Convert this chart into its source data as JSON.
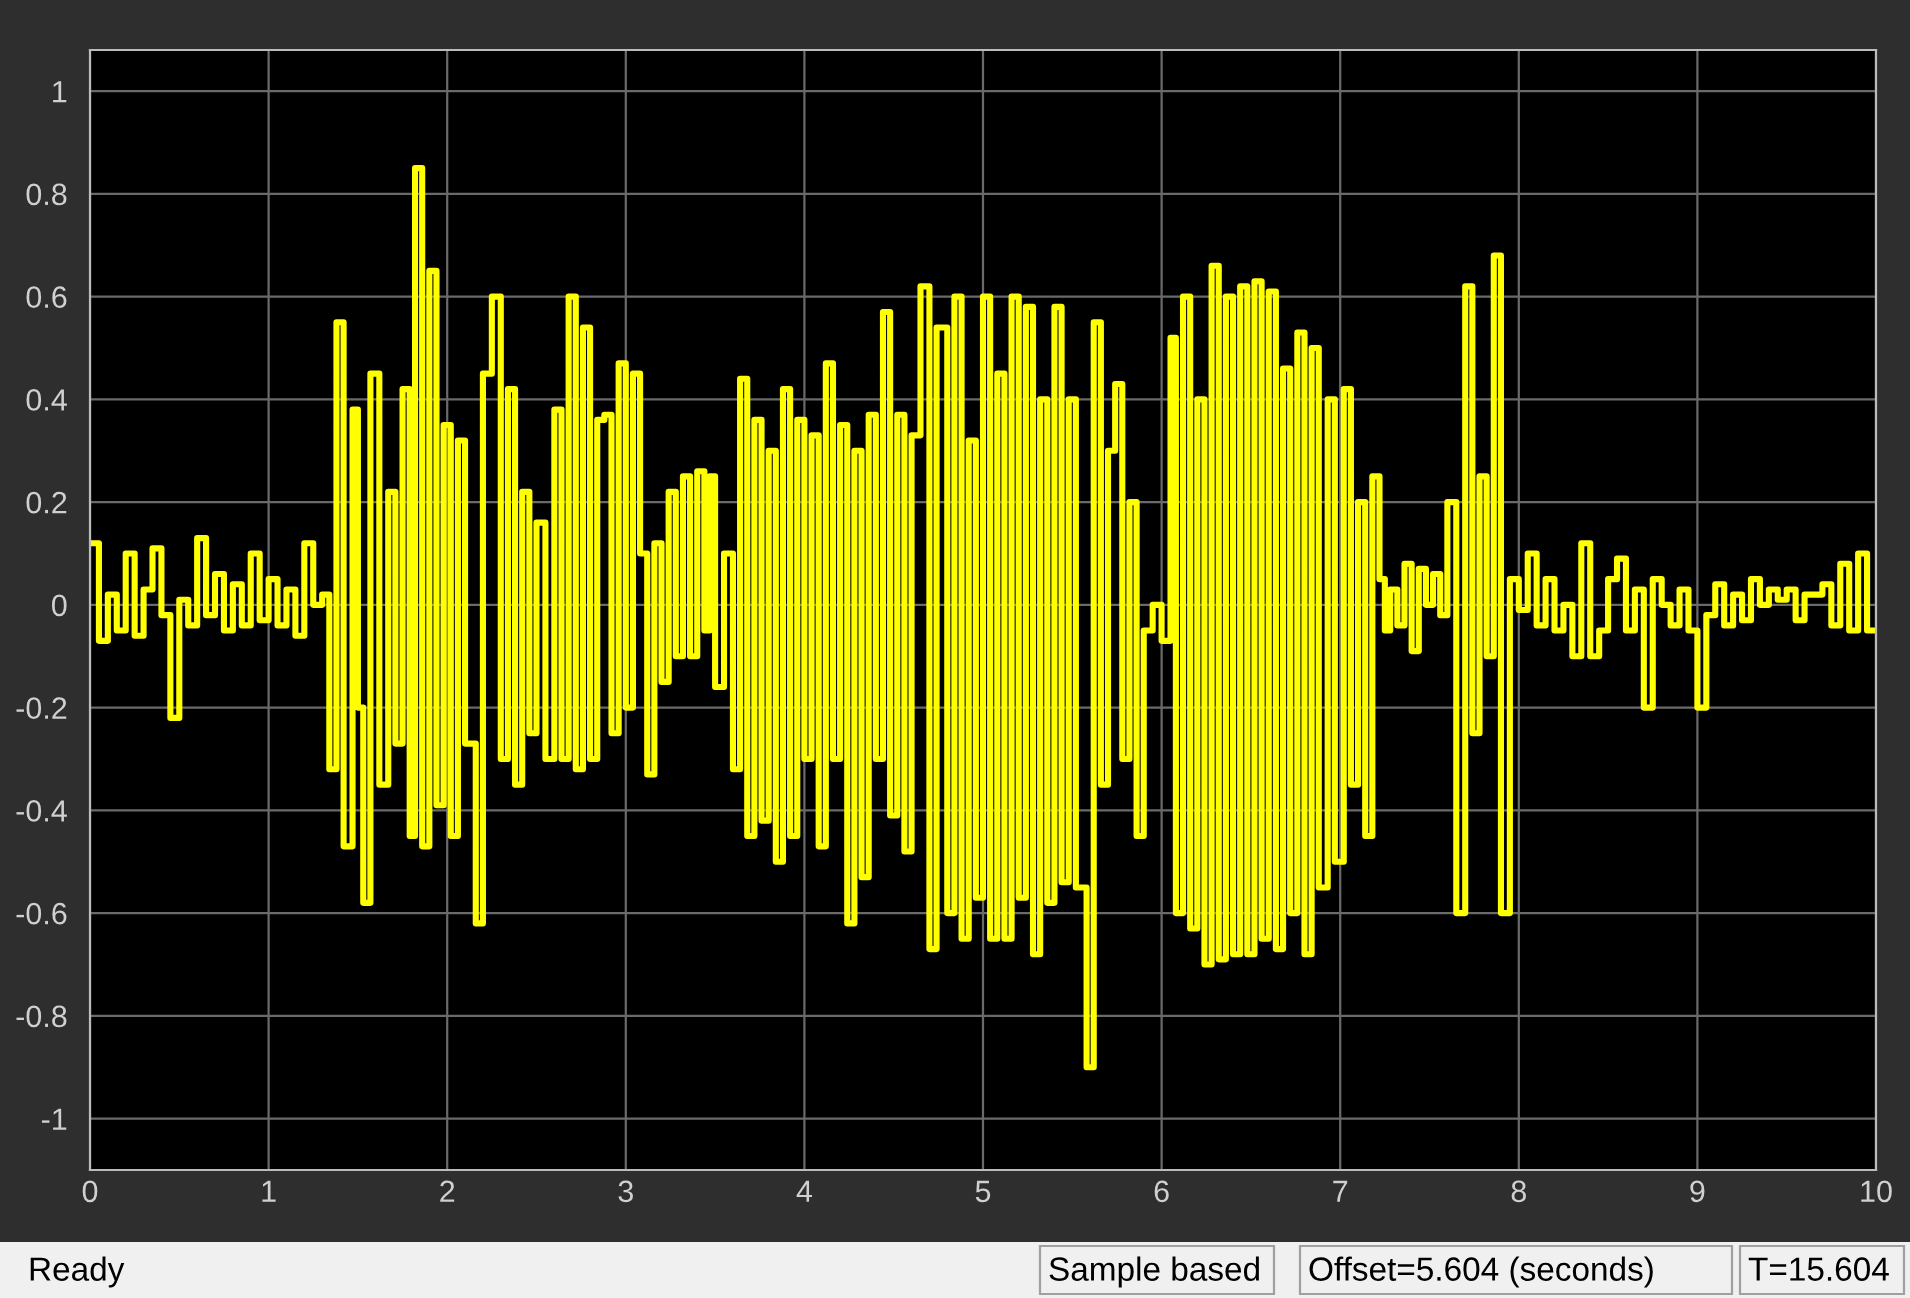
{
  "chart_data": {
    "type": "step",
    "grid": true,
    "marker": "none",
    "line_style": "solid",
    "xlim": [
      0,
      10
    ],
    "ylim": [
      -1.1,
      1.08
    ],
    "xticks": [
      0,
      1,
      2,
      3,
      4,
      5,
      6,
      7,
      8,
      9,
      10
    ],
    "yticks": [
      -1,
      -0.8,
      -0.6,
      -0.4,
      -0.2,
      0,
      0.2,
      0.4,
      0.6,
      0.8,
      1
    ],
    "annotations": [
      "Ready",
      "Sample based",
      "Offset=5.604 (seconds)",
      "T=15.604"
    ],
    "series": [
      {
        "color": "#ffff00",
        "x": [
          0.0,
          0.05,
          0.1,
          0.15,
          0.2,
          0.25,
          0.3,
          0.35,
          0.4,
          0.45,
          0.5,
          0.55,
          0.6,
          0.65,
          0.7,
          0.75,
          0.8,
          0.85,
          0.9,
          0.95,
          1.0,
          1.05,
          1.1,
          1.15,
          1.2,
          1.25,
          1.3,
          1.34,
          1.38,
          1.42,
          1.47,
          1.5,
          1.53,
          1.57,
          1.62,
          1.67,
          1.71,
          1.75,
          1.79,
          1.82,
          1.86,
          1.9,
          1.94,
          1.98,
          2.02,
          2.06,
          2.1,
          2.16,
          2.2,
          2.25,
          2.3,
          2.34,
          2.38,
          2.42,
          2.46,
          2.5,
          2.55,
          2.6,
          2.64,
          2.68,
          2.72,
          2.76,
          2.8,
          2.84,
          2.88,
          2.92,
          2.96,
          3.0,
          3.04,
          3.08,
          3.12,
          3.16,
          3.2,
          3.24,
          3.28,
          3.32,
          3.36,
          3.4,
          3.44,
          3.47,
          3.5,
          3.55,
          3.6,
          3.64,
          3.68,
          3.72,
          3.76,
          3.8,
          3.84,
          3.88,
          3.92,
          3.96,
          4.0,
          4.04,
          4.08,
          4.12,
          4.16,
          4.2,
          4.24,
          4.28,
          4.32,
          4.36,
          4.4,
          4.44,
          4.48,
          4.52,
          4.56,
          4.6,
          4.65,
          4.7,
          4.74,
          4.8,
          4.84,
          4.88,
          4.92,
          4.96,
          5.0,
          5.04,
          5.08,
          5.12,
          5.16,
          5.2,
          5.24,
          5.28,
          5.32,
          5.36,
          5.4,
          5.44,
          5.48,
          5.52,
          5.58,
          5.62,
          5.66,
          5.7,
          5.74,
          5.78,
          5.82,
          5.86,
          5.9,
          5.95,
          6.0,
          6.05,
          6.08,
          6.12,
          6.16,
          6.2,
          6.24,
          6.28,
          6.32,
          6.36,
          6.4,
          6.44,
          6.48,
          6.52,
          6.56,
          6.6,
          6.64,
          6.68,
          6.72,
          6.76,
          6.8,
          6.84,
          6.88,
          6.93,
          6.97,
          7.02,
          7.06,
          7.1,
          7.14,
          7.18,
          7.22,
          7.25,
          7.28,
          7.32,
          7.36,
          7.4,
          7.44,
          7.48,
          7.52,
          7.56,
          7.6,
          7.65,
          7.7,
          7.74,
          7.78,
          7.82,
          7.86,
          7.9,
          7.95,
          8.0,
          8.05,
          8.1,
          8.15,
          8.2,
          8.25,
          8.3,
          8.35,
          8.4,
          8.45,
          8.5,
          8.55,
          8.6,
          8.65,
          8.7,
          8.75,
          8.8,
          8.85,
          8.9,
          8.95,
          9.0,
          9.05,
          9.1,
          9.15,
          9.2,
          9.25,
          9.3,
          9.35,
          9.4,
          9.45,
          9.5,
          9.55,
          9.6,
          9.65,
          9.7,
          9.75,
          9.8,
          9.85,
          9.9,
          9.95,
          10.0
        ],
        "values": [
          0.12,
          -0.07,
          0.02,
          -0.05,
          0.1,
          -0.06,
          0.03,
          0.11,
          -0.02,
          -0.22,
          0.01,
          -0.04,
          0.13,
          -0.02,
          0.06,
          -0.05,
          0.04,
          -0.04,
          0.1,
          -0.03,
          0.05,
          -0.04,
          0.03,
          -0.06,
          0.12,
          0.0,
          0.02,
          -0.32,
          0.55,
          -0.47,
          0.38,
          -0.2,
          -0.58,
          0.45,
          -0.35,
          0.22,
          -0.27,
          0.42,
          -0.45,
          0.85,
          -0.47,
          0.65,
          -0.39,
          0.35,
          -0.45,
          0.32,
          -0.27,
          -0.62,
          0.45,
          0.6,
          -0.3,
          0.42,
          -0.35,
          0.22,
          -0.25,
          0.16,
          -0.3,
          0.38,
          -0.3,
          0.6,
          -0.32,
          0.54,
          -0.3,
          0.36,
          0.37,
          -0.25,
          0.47,
          -0.2,
          0.45,
          0.1,
          -0.33,
          0.12,
          -0.15,
          0.22,
          -0.1,
          0.25,
          -0.1,
          0.26,
          -0.05,
          0.25,
          -0.16,
          0.1,
          -0.32,
          0.44,
          -0.45,
          0.36,
          -0.42,
          0.3,
          -0.5,
          0.42,
          -0.45,
          0.36,
          -0.3,
          0.33,
          -0.47,
          0.47,
          -0.3,
          0.35,
          -0.62,
          0.3,
          -0.53,
          0.37,
          -0.3,
          0.57,
          -0.41,
          0.37,
          -0.48,
          0.33,
          0.62,
          -0.67,
          0.54,
          -0.6,
          0.6,
          -0.65,
          0.32,
          -0.57,
          0.6,
          -0.65,
          0.45,
          -0.65,
          0.6,
          -0.57,
          0.58,
          -0.68,
          0.4,
          -0.58,
          0.58,
          -0.54,
          0.4,
          -0.55,
          -0.9,
          0.55,
          -0.35,
          0.3,
          0.43,
          -0.3,
          0.2,
          -0.45,
          -0.05,
          0.0,
          -0.07,
          0.52,
          -0.6,
          0.6,
          -0.63,
          0.4,
          -0.7,
          0.66,
          -0.69,
          0.6,
          -0.68,
          0.62,
          -0.68,
          0.63,
          -0.65,
          0.61,
          -0.67,
          0.46,
          -0.6,
          0.53,
          -0.68,
          0.5,
          -0.55,
          0.4,
          -0.5,
          0.42,
          -0.35,
          0.2,
          -0.45,
          0.25,
          0.05,
          -0.05,
          0.03,
          -0.04,
          0.08,
          -0.09,
          0.07,
          0.0,
          0.06,
          -0.02,
          0.2,
          -0.6,
          0.62,
          -0.25,
          0.25,
          -0.1,
          0.68,
          -0.6,
          0.05,
          -0.01,
          0.1,
          -0.04,
          0.05,
          -0.05,
          0.0,
          -0.1,
          0.12,
          -0.1,
          -0.05,
          0.05,
          0.09,
          -0.05,
          0.03,
          -0.2,
          0.05,
          0.0,
          -0.04,
          0.03,
          -0.05,
          -0.2,
          -0.02,
          0.04,
          -0.04,
          0.02,
          -0.03,
          0.05,
          0.0,
          0.03,
          0.01,
          0.03,
          -0.03,
          0.02,
          0.02,
          0.04,
          -0.04,
          0.08,
          -0.05,
          0.1,
          -0.05,
          -0.05
        ]
      }
    ]
  }
}
